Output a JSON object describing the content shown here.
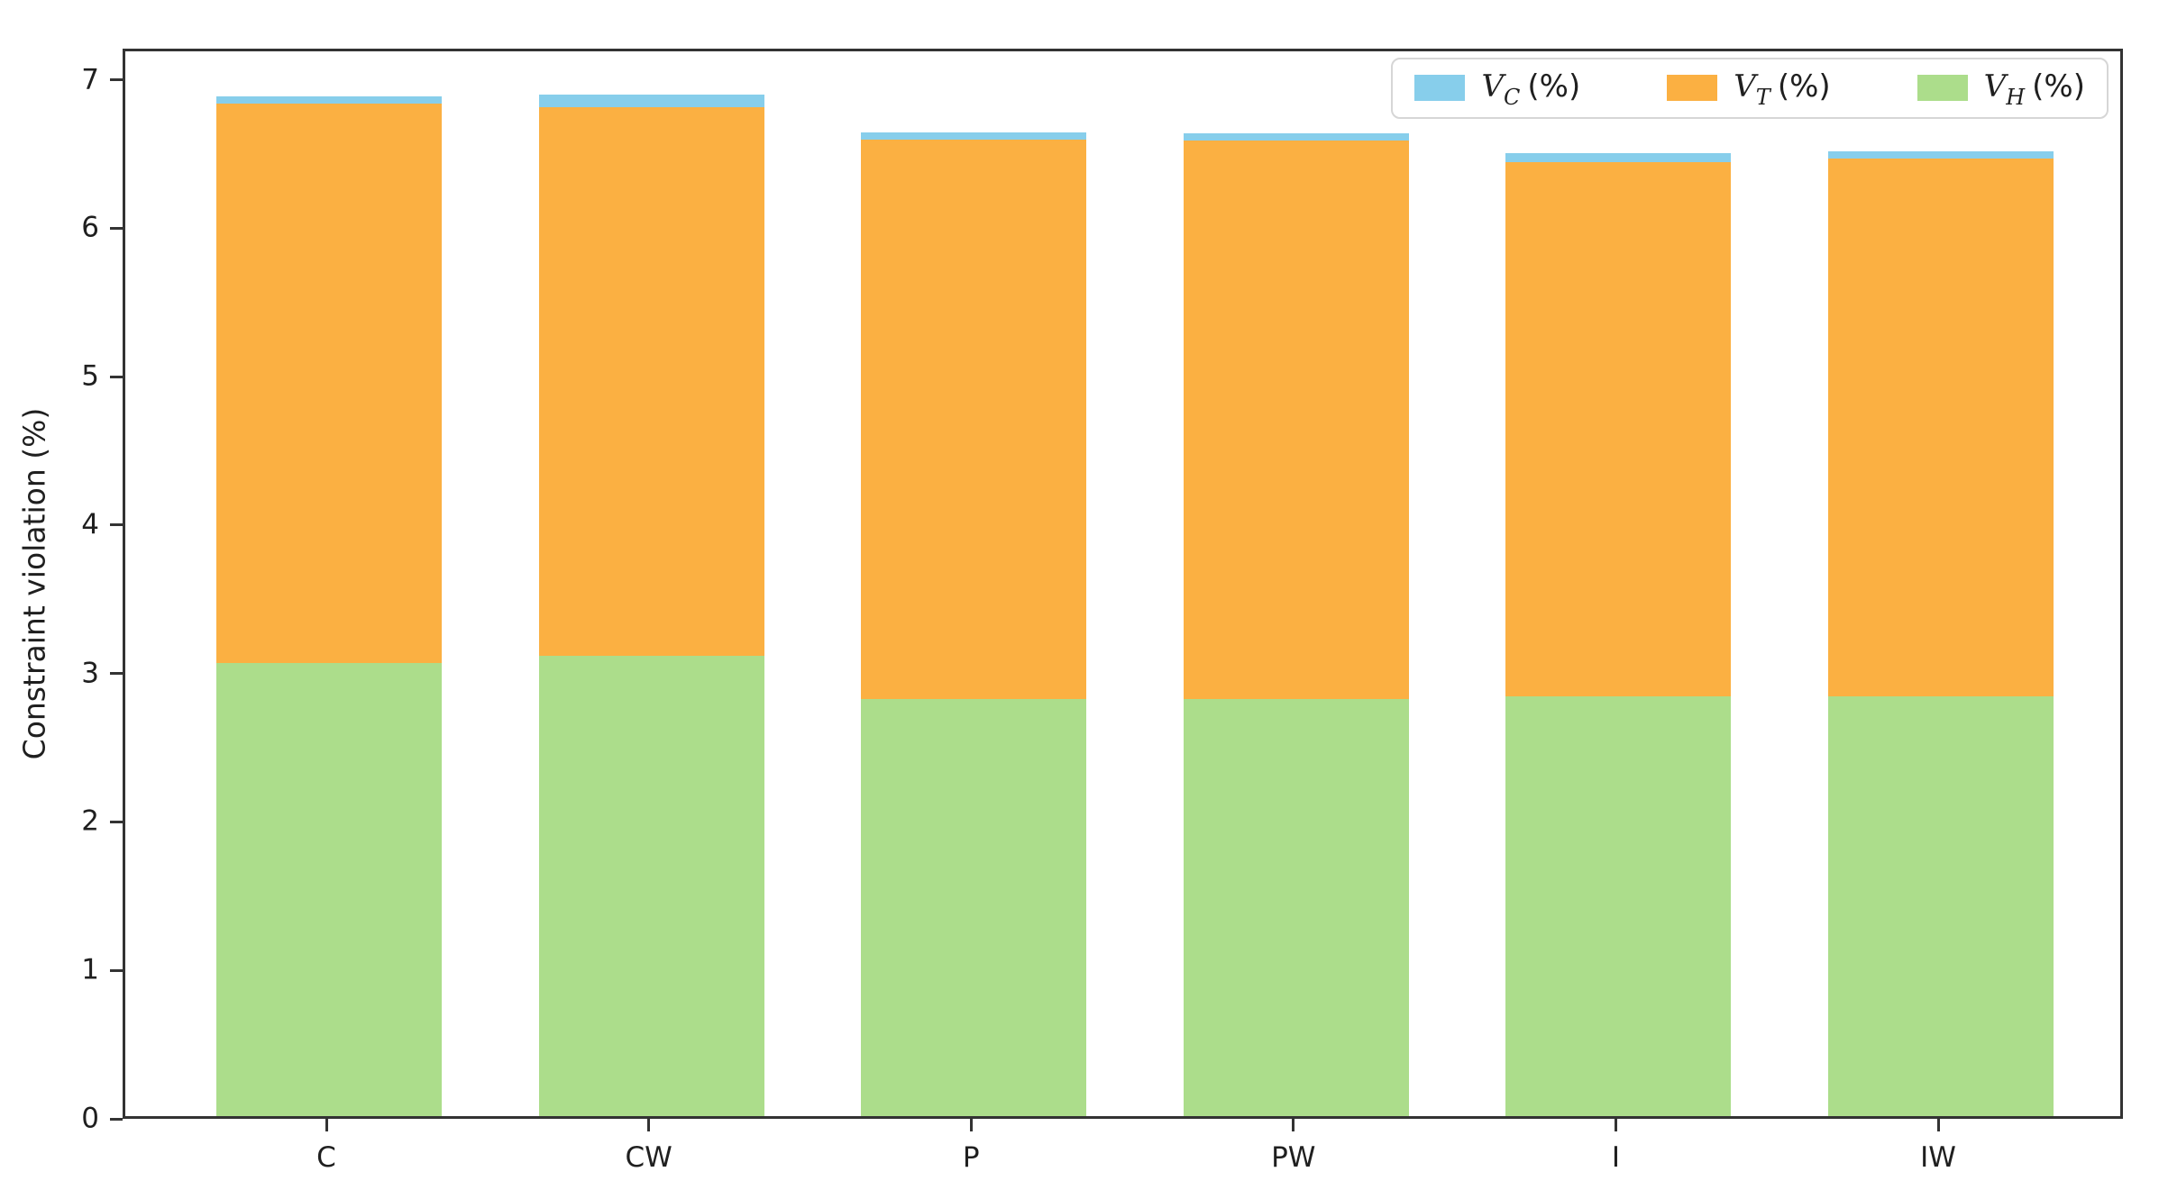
{
  "chart_data": {
    "type": "bar",
    "stacked": true,
    "title": "",
    "xlabel": "",
    "ylabel": "Constraint violation (%)",
    "categories": [
      "C",
      "CW",
      "P",
      "PW",
      "I",
      "IW"
    ],
    "series": [
      {
        "name": "V_C (%)",
        "legend": {
          "var": "V",
          "sub": "C",
          "suffix": "(%)"
        },
        "color": "#87CEEB",
        "values": [
          0.05,
          0.08,
          0.05,
          0.05,
          0.06,
          0.05
        ]
      },
      {
        "name": "V_T (%)",
        "legend": {
          "var": "V",
          "sub": "T",
          "suffix": "(%)"
        },
        "color": "#FBB042",
        "values": [
          3.77,
          3.7,
          3.77,
          3.76,
          3.6,
          3.62
        ]
      },
      {
        "name": "V_H (%)",
        "legend": {
          "var": "V",
          "sub": "H",
          "suffix": "(%)"
        },
        "color": "#ACDD8B",
        "values": [
          3.05,
          3.1,
          2.81,
          2.81,
          2.83,
          2.83
        ]
      }
    ],
    "stack_order_bottom_to_top": [
      "V_H (%)",
      "V_T (%)",
      "V_C (%)"
    ],
    "totals": [
      6.87,
      6.88,
      6.63,
      6.62,
      6.49,
      6.5
    ],
    "ylim": [
      0,
      7.21
    ],
    "yticks": [
      0,
      1,
      2,
      3,
      4,
      5,
      6,
      7
    ],
    "grid": false,
    "legend_position": "upper right"
  }
}
